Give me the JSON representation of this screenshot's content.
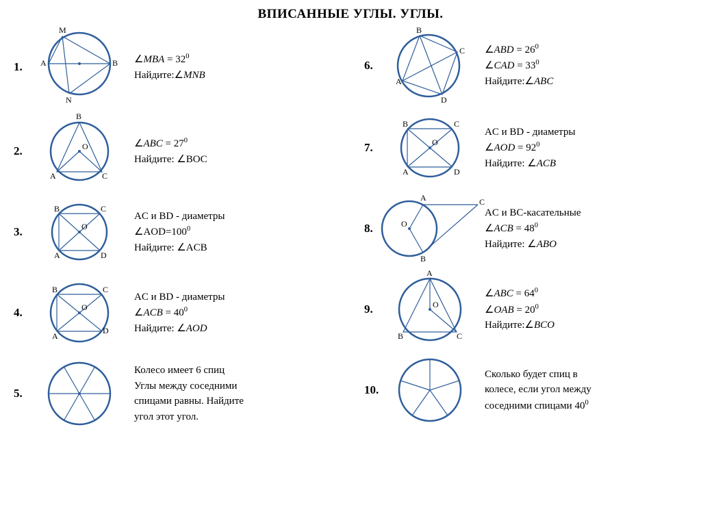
{
  "title": "ВПИСАННЫЕ УГЛЫ.  УГЛЫ.",
  "colors": {
    "stroke": "#2f5e9b",
    "bg": "#ffffff",
    "text": "#000000"
  },
  "problems": [
    {
      "n": "1.",
      "lines": [
        "∠<span class='math'>MBA</span> = 32<span class='sup'>0</span>",
        "Найдите:∠<span class='math'>MNB</span>"
      ]
    },
    {
      "n": "2.",
      "lines": [
        "∠<span class='math'>ABC</span> = 27<span class='sup'>0</span>",
        "Найдите: ∠BOC"
      ]
    },
    {
      "n": "3.",
      "lines": [
        "AC и BD - диаметры",
        "∠AOD=100<span class='sup'>0</span>",
        "Найдите: ∠ACB"
      ]
    },
    {
      "n": "4.",
      "lines": [
        "AC и BD - диаметры",
        "∠<span class='math'>ACB</span> = 40<span class='sup'>0</span>",
        "Найдите: ∠<span class='math'>AOD</span>"
      ]
    },
    {
      "n": "5.",
      "lines": [
        "Колесо имеет 6 спиц",
        "Углы между соседними",
        "спицами равны. Найдите",
        "угол этот угол."
      ]
    },
    {
      "n": "6.",
      "lines": [
        "∠<span class='math'>ABD</span> = 26<span class='sup'>0</span>",
        "∠<span class='math'>CAD</span> = 33<span class='sup'>0</span>",
        "Найдите:∠<span class='math'>ABC</span>"
      ]
    },
    {
      "n": "7.",
      "lines": [
        "AC и BD - диаметры",
        "∠<span class='math'>AOD</span> = 92<span class='sup'>0</span>",
        "Найдите: ∠<span class='math'>ACB</span>"
      ]
    },
    {
      "n": "8.",
      "lines": [
        "AC и BC-касательные",
        "∠<span class='math'>ACB</span> = 48<span class='sup'>0</span>",
        "Найдите: ∠<span class='math'>ABO</span>"
      ]
    },
    {
      "n": "9.",
      "lines": [
        "∠<span class='math'>ABC</span> = 64<span class='sup'>0</span>",
        "∠<span class='math'>OAB</span> = 20<span class='sup'>0</span>",
        "Найдите:∠<span class='math'>BCO</span>"
      ]
    },
    {
      "n": "10.",
      "lines": [
        "Сколько будет спиц в",
        "колесе, если угол между",
        "соседними спицами 40<span class='sup'>0</span>"
      ]
    }
  ],
  "labels": {
    "p1": {
      "M": "M",
      "A": "A",
      "B": "B",
      "N": "N"
    },
    "p2": {
      "B": "B",
      "A": "A",
      "C": "C",
      "O": "O"
    },
    "p3": {
      "B": "B",
      "C": "C",
      "A": "A",
      "D": "D",
      "O": "O"
    },
    "p4": {
      "B": "B",
      "C": "C",
      "A": "A",
      "D": "D",
      "O": "O"
    },
    "p6": {
      "B": "B",
      "C": "C",
      "A": "A",
      "D": "D"
    },
    "p7": {
      "B": "B",
      "C": "C",
      "A": "A",
      "D": "D",
      "O": "O"
    },
    "p8": {
      "A": "A",
      "B": "B",
      "C": "C",
      "O": "O"
    },
    "p9": {
      "A": "A",
      "B": "B",
      "C": "C",
      "O": "O"
    }
  }
}
